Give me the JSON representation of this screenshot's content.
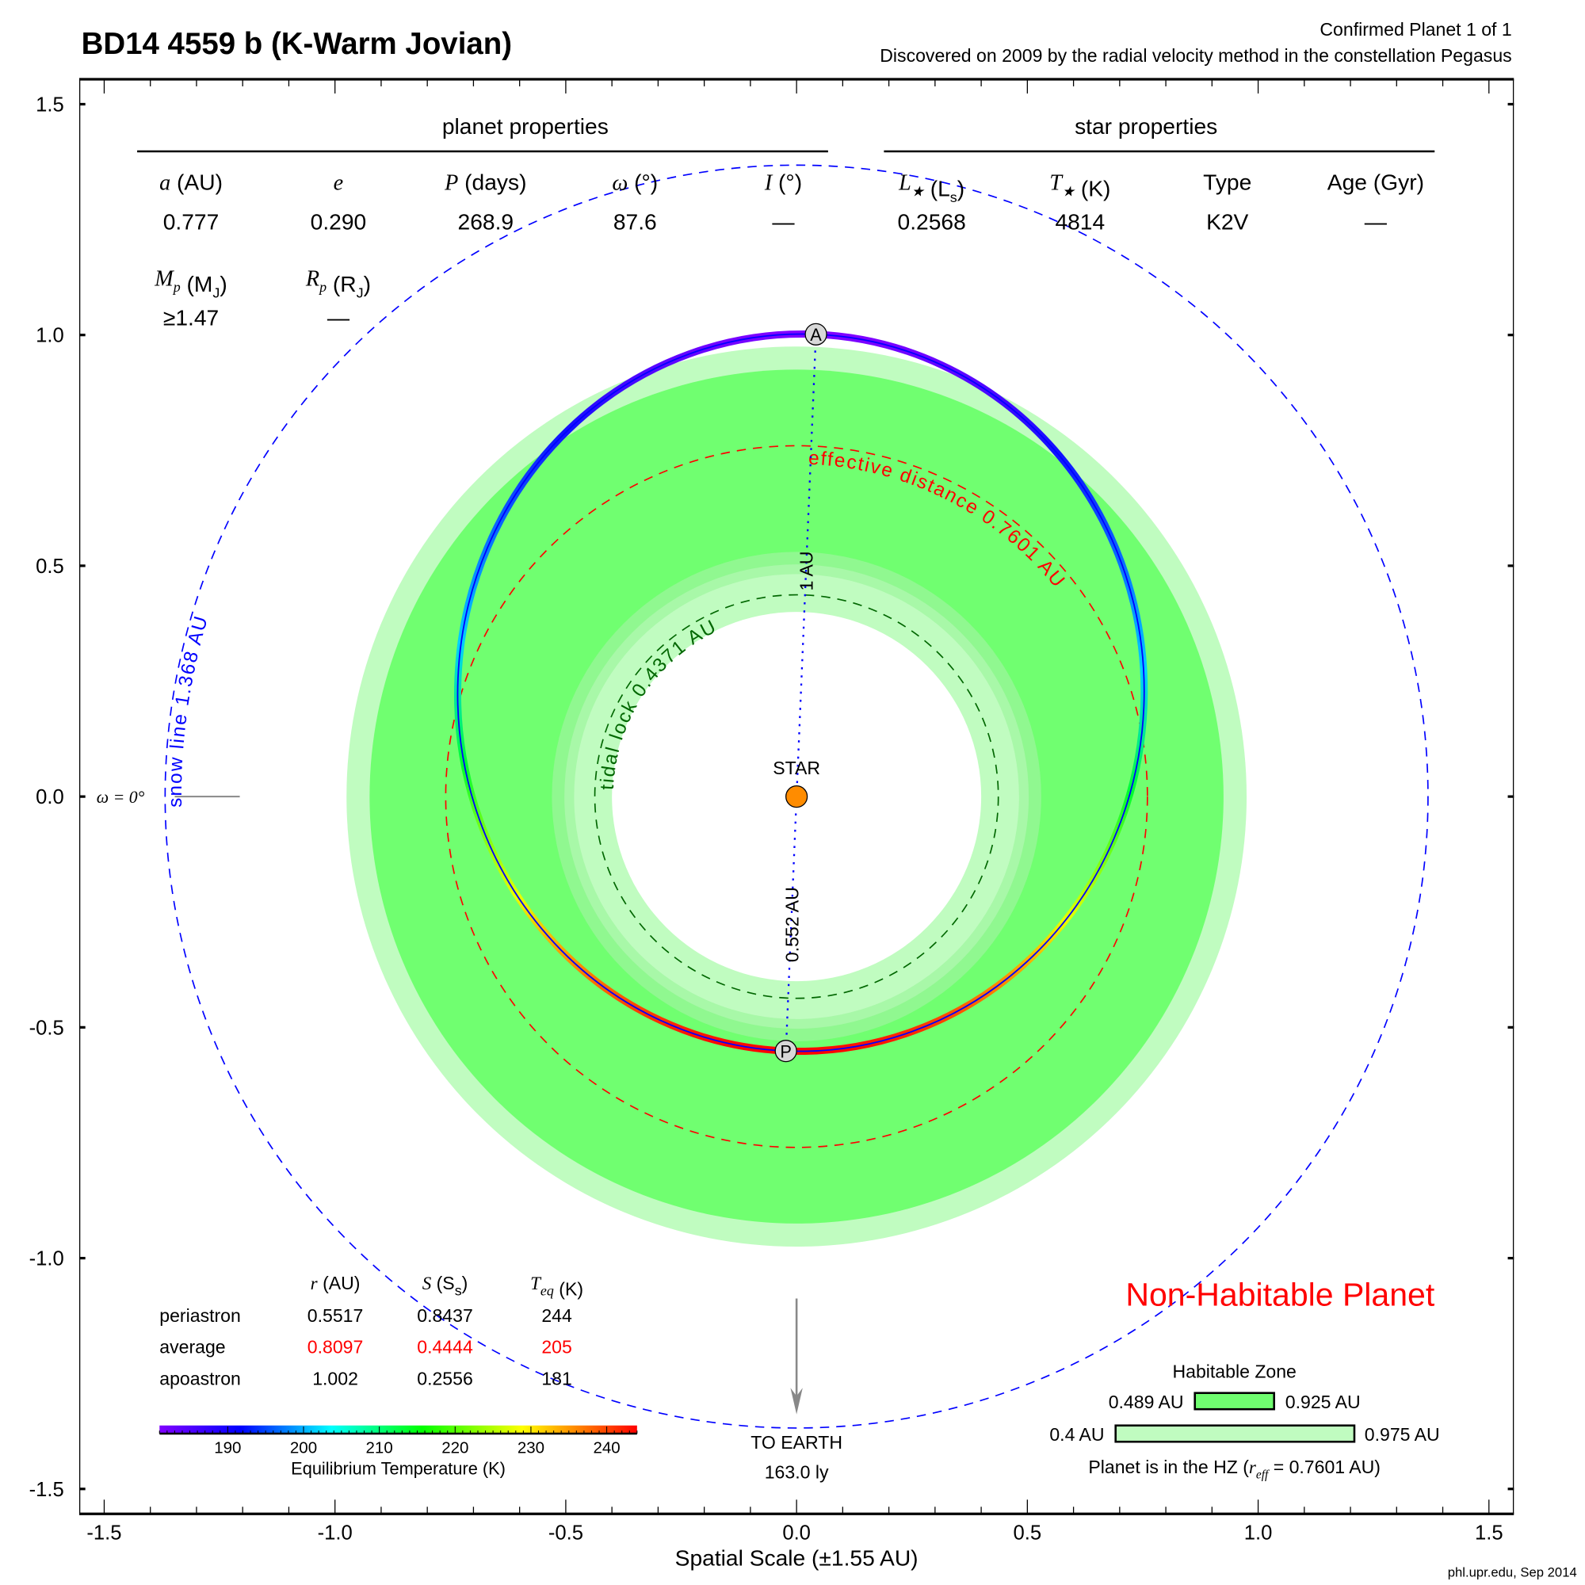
{
  "header": {
    "title": "BD14 4559 b (K-Warm Jovian)",
    "status": "Confirmed Planet 1 of 1",
    "discovery": "Discovered on 2009 by the radial velocity method in the constellation Pegasus"
  },
  "planet_properties": {
    "heading": "planet properties",
    "columns": [
      {
        "sym": "a",
        "sub": "",
        "unit": " (AU)",
        "unit_sub": "",
        "unit_end": "",
        "value": "0.777"
      },
      {
        "sym": "e",
        "sub": "",
        "unit": "",
        "unit_sub": "",
        "unit_end": "",
        "value": "0.290"
      },
      {
        "sym": "P",
        "sub": "",
        "unit": " (days)",
        "unit_sub": "",
        "unit_end": "",
        "value": "268.9"
      },
      {
        "sym": "ω",
        "sub": "",
        "unit": " (°)",
        "unit_sub": "",
        "unit_end": "",
        "value": "87.6"
      },
      {
        "sym": "I",
        "sub": "",
        "unit": " (°)",
        "unit_sub": "",
        "unit_end": "",
        "value": "—"
      }
    ],
    "columns2": [
      {
        "sym": "M",
        "sub": "p",
        "unit": " (M",
        "unit_sub": "J",
        "unit_end": ")",
        "value": "≥1.47"
      },
      {
        "sym": "R",
        "sub": "p",
        "unit": " (R",
        "unit_sub": "J",
        "unit_end": ")",
        "value": "—"
      }
    ]
  },
  "star_properties": {
    "heading": "star properties",
    "columns": [
      {
        "sym": "L",
        "sub": "★",
        "unit": " (L",
        "unit_sub": "s",
        "unit_end": ")",
        "value": "0.2568"
      },
      {
        "sym": "T",
        "sub": "★",
        "unit": " (K)",
        "unit_sub": "",
        "unit_end": "",
        "value": "4814"
      },
      {
        "sym": "",
        "sub": "",
        "unit": "Type",
        "unit_sub": "",
        "unit_end": "",
        "value": "K2V"
      },
      {
        "sym": "",
        "sub": "",
        "unit": "Age (Gyr)",
        "unit_sub": "",
        "unit_end": "",
        "value": "—"
      }
    ]
  },
  "orbit": {
    "semi_major_axis_au": 0.777,
    "eccentricity": 0.29,
    "omega_deg": 87.6,
    "apoastron_marker": "A",
    "periastron_marker": "P",
    "apo_label": "1 AU",
    "peri_label": "0.552 AU",
    "star_label": "STAR",
    "omega_label": "ω = 0°"
  },
  "zones": {
    "snow_line_au": 1.368,
    "snow_line_label": "snow line 1.368 AU",
    "effective_distance_au": 0.7601,
    "effective_distance_label": "effective distance 0.7601 AU",
    "tidal_lock_au": 0.4371,
    "tidal_lock_label": "tidal lock 0.4371 AU",
    "hz_conservative_au": [
      0.489,
      0.925
    ],
    "hz_optimistic_au": [
      0.4,
      0.975
    ]
  },
  "orbit_table": {
    "headers": [
      {
        "sym": "r",
        "sub": "",
        "unit": " (AU)",
        "unit_sub": "",
        "unit_end": ""
      },
      {
        "sym": "S",
        "sub": "",
        "unit": " (S",
        "unit_sub": "s",
        "unit_end": ")"
      },
      {
        "sym": "T",
        "sub": "eq",
        "unit": " (K)",
        "unit_sub": "",
        "unit_end": ""
      }
    ],
    "rows": [
      {
        "label": "periastron",
        "values": [
          "0.5517",
          "0.8437",
          "244"
        ],
        "highlight": false
      },
      {
        "label": "average",
        "values": [
          "0.8097",
          "0.4444",
          "205"
        ],
        "highlight": true
      },
      {
        "label": "apoastron",
        "values": [
          "1.002",
          "0.2556",
          "181"
        ],
        "highlight": false
      }
    ]
  },
  "colorbar": {
    "min": 181,
    "max": 244,
    "ticks": [
      "190",
      "200",
      "210",
      "220",
      "230",
      "240"
    ],
    "label": "Equilibrium Temperature (K)"
  },
  "earth": {
    "label": "TO EARTH",
    "distance": "163.0 ly"
  },
  "verdict": "Non-Habitable Planet",
  "hz_legend": {
    "title": "Habitable Zone",
    "inner_left": "0.489 AU",
    "inner_right": "0.925 AU",
    "outer_left": "0.4 AU",
    "outer_right": "0.975 AU",
    "status_prefix": "Planet is in the HZ (",
    "status_sym": "r",
    "status_sub": "eff",
    "status_suffix": " = 0.7601 AU)"
  },
  "axes": {
    "xlabel": "Spatial Scale (±1.55 AU)",
    "range": 1.55,
    "xticks": [
      "-1.5",
      "-1.0",
      "-0.5",
      "0.0",
      "0.5",
      "1.0",
      "1.5"
    ],
    "yticks": [
      "1.5",
      "1.0",
      "0.5",
      "0.0",
      "-0.5",
      "-1.0",
      "-1.5"
    ]
  },
  "credit": "phl.upr.edu, Sep 2014",
  "colors": {
    "hz_inner": "#70ff70",
    "hz_outer": "#c0fcc0",
    "snow": "#0000ff",
    "effective": "#ff0000",
    "tidal": "#006600",
    "star": "#ff8c00",
    "verdict": "#ff0000"
  }
}
